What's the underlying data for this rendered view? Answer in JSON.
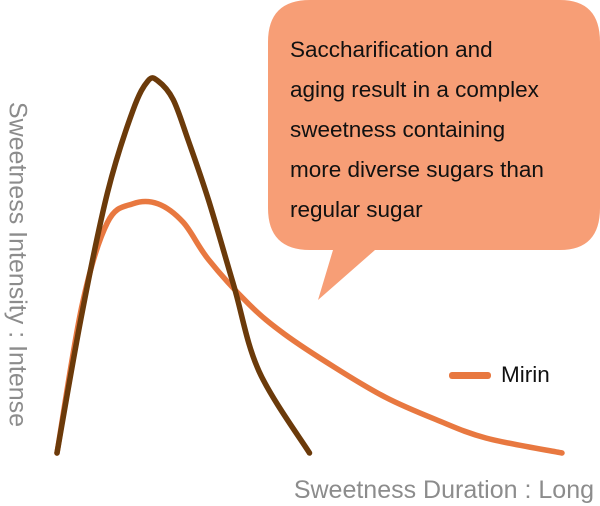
{
  "annotation": {
    "lines": [
      "Saccharification and",
      "aging result in a complex",
      "sweetness containing",
      "more diverse sugars than",
      "regular sugar"
    ]
  },
  "chart_data": {
    "type": "line",
    "title": "",
    "xlabel": "Sweetness Duration : Long",
    "ylabel": "Sweetness Intensity : Intense",
    "grid": false,
    "legend_position": "right",
    "colors": {
      "mirin": "#e87840",
      "regular_sugar": "#6b3a0a",
      "bubble": "#f79e76"
    },
    "series": [
      {
        "name": "Mirin",
        "color": "#e87840",
        "x": [
          0,
          5,
          10,
          15,
          20,
          25,
          30,
          38,
          45,
          55,
          65,
          75,
          85,
          100
        ],
        "y": [
          0,
          40,
          62,
          67,
          67,
          62,
          52,
          40,
          32,
          23,
          15,
          9,
          4,
          0
        ]
      },
      {
        "color": "#6b3a0a",
        "x": [
          0,
          5,
          10,
          15,
          18,
          20,
          23,
          26,
          30,
          35,
          40,
          50
        ],
        "y": [
          0,
          38,
          70,
          92,
          100,
          100,
          95,
          84,
          68,
          45,
          22,
          0
        ]
      }
    ]
  }
}
